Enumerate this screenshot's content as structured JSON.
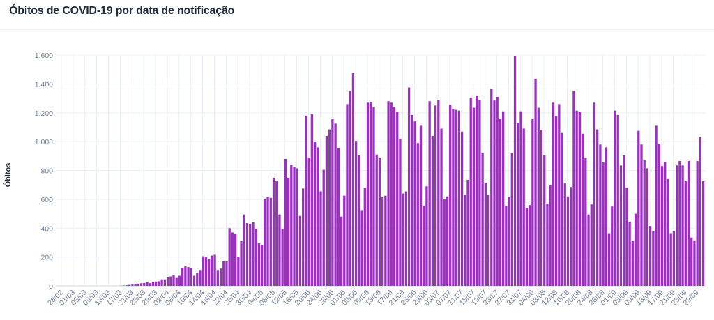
{
  "colors": {
    "bar": "#9b2fc1",
    "grid": "#e9eff7",
    "text": "#6f7f9e"
  },
  "chart_data": {
    "type": "bar",
    "title": "Óbitos de COVID-19 por data de notificação",
    "xlabel": "",
    "ylabel": "Óbitos",
    "ylim": [
      0,
      1600
    ],
    "y_ticks": [
      0,
      200,
      400,
      600,
      800,
      1000,
      1200,
      1400,
      1600
    ],
    "y_tick_labels": [
      "0",
      "200",
      "400",
      "600",
      "800",
      "1.000",
      "1.200",
      "1.400",
      "1.600"
    ],
    "start_date": "26/02",
    "x_tick_every_days": 4,
    "x_tick_labels": [
      "26/02",
      "01/03",
      "05/03",
      "09/03",
      "13/03",
      "17/03",
      "21/03",
      "25/03",
      "29/03",
      "02/04",
      "06/04",
      "10/04",
      "14/04",
      "18/04",
      "22/04",
      "26/04",
      "30/04",
      "04/05",
      "08/05",
      "12/05",
      "16/05",
      "20/05",
      "24/05",
      "28/05",
      "01/06",
      "05/06",
      "09/06",
      "13/06",
      "17/06",
      "21/06",
      "25/06",
      "29/06",
      "03/07",
      "07/07",
      "11/07",
      "15/07",
      "19/07",
      "23/07",
      "27/07",
      "31/07",
      "04/08",
      "08/08",
      "12/08",
      "16/08",
      "20/08",
      "24/08",
      "28/08",
      "01/09",
      "05/09",
      "09/09",
      "13/09",
      "17/09",
      "21/09",
      "25/09",
      "29/09"
    ],
    "grid": true,
    "values": [
      0,
      0,
      0,
      0,
      0,
      0,
      0,
      0,
      0,
      0,
      0,
      0,
      0,
      0,
      0,
      0,
      0,
      0,
      0,
      0,
      1,
      3,
      4,
      7,
      9,
      12,
      15,
      18,
      20,
      25,
      18,
      28,
      30,
      32,
      45,
      45,
      60,
      65,
      75,
      55,
      70,
      125,
      135,
      130,
      125,
      70,
      90,
      110,
      205,
      200,
      185,
      210,
      215,
      110,
      120,
      170,
      170,
      400,
      370,
      360,
      200,
      310,
      495,
      435,
      430,
      440,
      395,
      295,
      280,
      600,
      615,
      610,
      750,
      730,
      495,
      395,
      880,
      750,
      840,
      825,
      815,
      485,
      675,
      1180,
      890,
      1190,
      1000,
      960,
      655,
      805,
      1040,
      1085,
      1160,
      1125,
      955,
      480,
      625,
      1260,
      1350,
      1475,
      1005,
      905,
      525,
      680,
      1270,
      1275,
      1240,
      910,
      890,
      615,
      625,
      1280,
      1270,
      1240,
      1205,
      1020,
      640,
      655,
      1375,
      1185,
      1140,
      990,
      1110,
      555,
      690,
      1280,
      1040,
      1250,
      1290,
      1090,
      600,
      620,
      1255,
      1225,
      1220,
      1215,
      1070,
      630,
      735,
      1300,
      1235,
      1320,
      1290,
      920,
      715,
      630,
      1365,
      1285,
      1310,
      1160,
      1210,
      555,
      615,
      920,
      1595,
      1130,
      1210,
      1090,
      540,
      560,
      1155,
      1435,
      1235,
      1080,
      905,
      570,
      700,
      1270,
      1175,
      1260,
      1060,
      710,
      620,
      685,
      1350,
      1215,
      1205,
      1055,
      890,
      495,
      565,
      1270,
      1085,
      980,
      855,
      960,
      365,
      550,
      1215,
      1185,
      835,
      905,
      680,
      445,
      310,
      500,
      1075,
      980,
      870,
      815,
      415,
      380,
      1110,
      985,
      830,
      860,
      740,
      365,
      380,
      835,
      865,
      835,
      725,
      865,
      335,
      315,
      865,
      1030,
      725
    ]
  }
}
